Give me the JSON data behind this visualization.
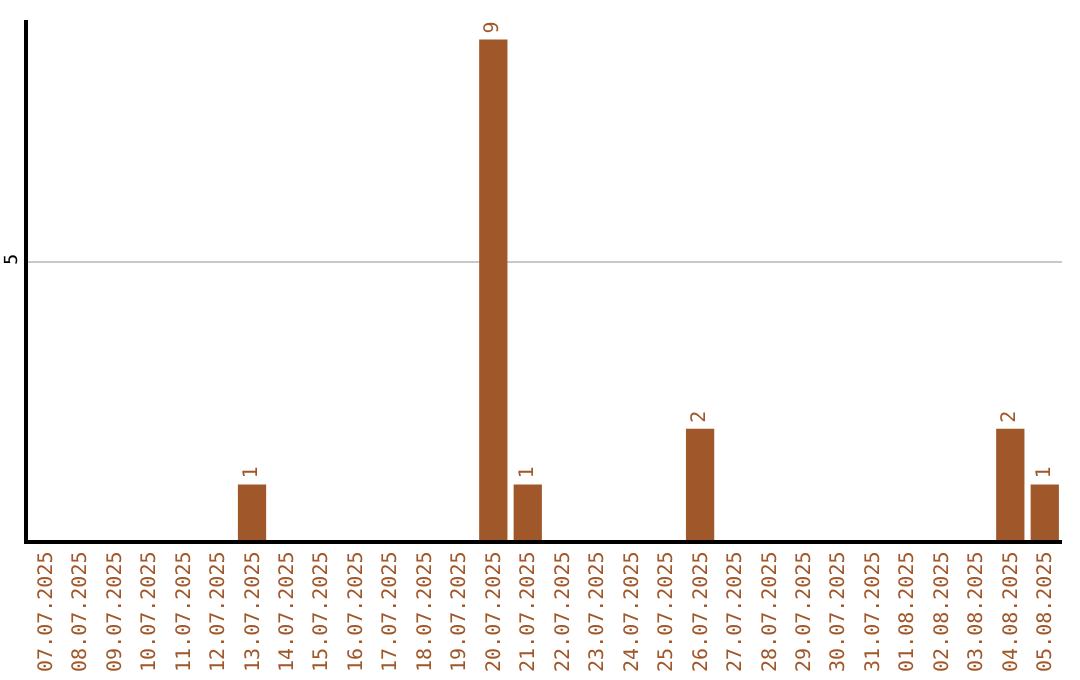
{
  "chart_data": {
    "type": "bar",
    "categories": [
      "07.07.2025",
      "08.07.2025",
      "09.07.2025",
      "10.07.2025",
      "11.07.2025",
      "12.07.2025",
      "13.07.2025",
      "14.07.2025",
      "15.07.2025",
      "16.07.2025",
      "17.07.2025",
      "18.07.2025",
      "19.07.2025",
      "20.07.2025",
      "21.07.2025",
      "22.07.2025",
      "23.07.2025",
      "24.07.2025",
      "25.07.2025",
      "26.07.2025",
      "27.07.2025",
      "28.07.2025",
      "29.07.2025",
      "30.07.2025",
      "31.07.2025",
      "01.08.2025",
      "02.08.2025",
      "03.08.2025",
      "04.08.2025",
      "05.08.2025"
    ],
    "values": [
      0,
      0,
      0,
      0,
      0,
      0,
      1,
      0,
      0,
      0,
      0,
      0,
      0,
      9,
      1,
      0,
      0,
      0,
      0,
      2,
      0,
      0,
      0,
      0,
      0,
      0,
      0,
      0,
      2,
      1
    ],
    "value_labels": [
      null,
      null,
      null,
      null,
      null,
      null,
      "1",
      null,
      null,
      null,
      null,
      null,
      null,
      "9",
      "1",
      null,
      null,
      null,
      null,
      "2",
      null,
      null,
      null,
      null,
      null,
      null,
      null,
      null,
      "2",
      "1"
    ],
    "color": "#a0572a",
    "ylim": [
      0,
      9.35
    ],
    "yticks": [
      5
    ],
    "grid": "y",
    "legend": false
  }
}
